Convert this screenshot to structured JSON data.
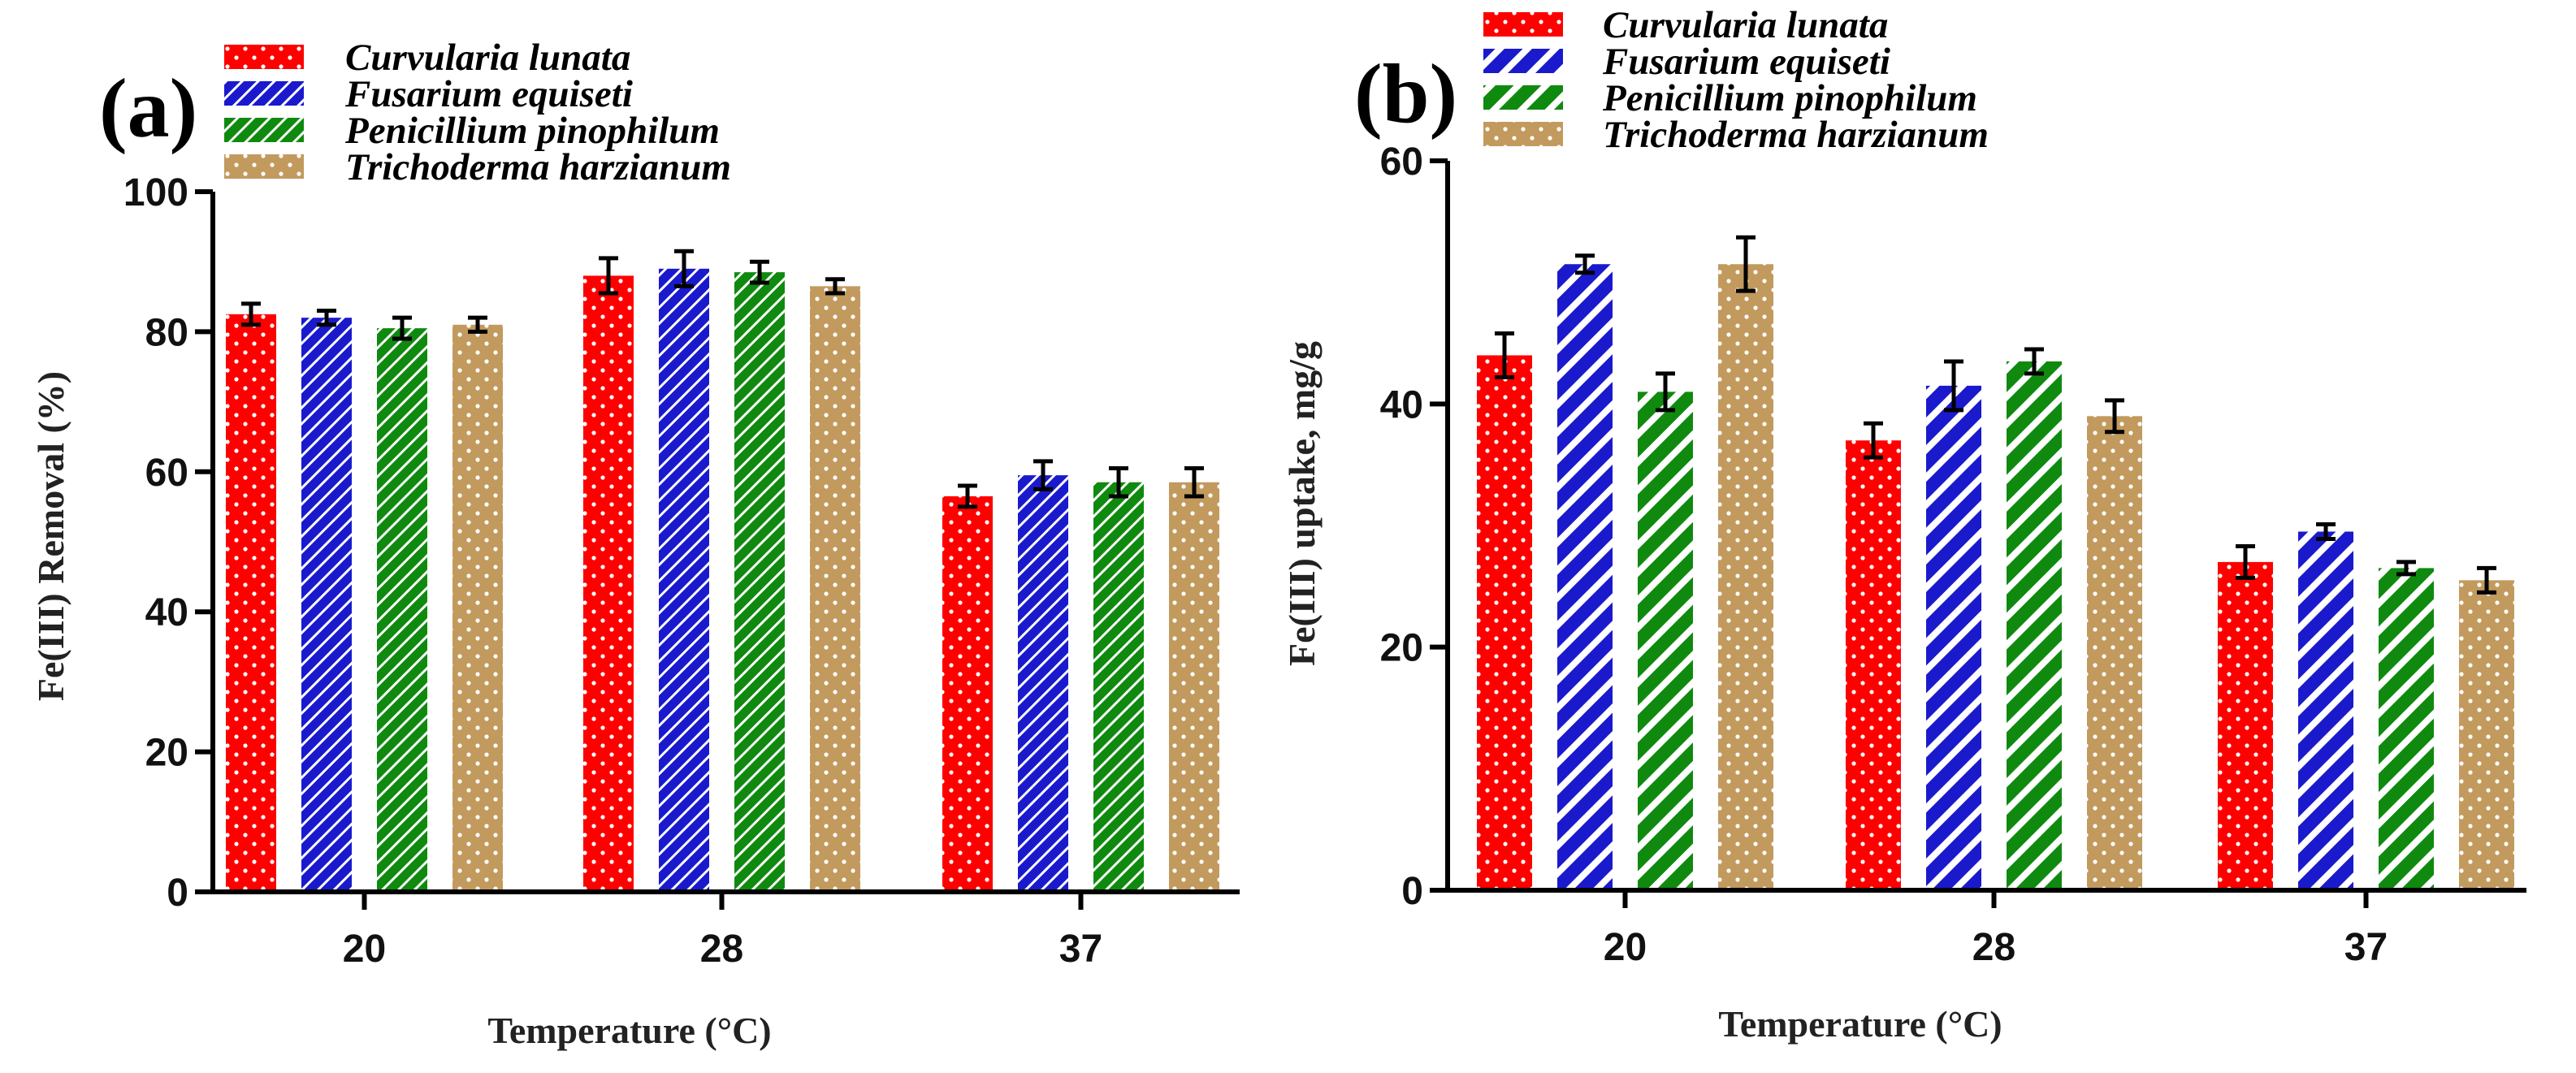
{
  "colors": {
    "Curvularia lunata": "#ff0000",
    "Fusarium equiseti": "#1a1acc",
    "Penicillium pinophilum": "#0f8a0f",
    "Trichoderma harzianum": "#c29a5e"
  },
  "chart_data": [
    {
      "type": "bar",
      "panel_label": "(a)",
      "title": "",
      "xlabel": "Temperature (°C)",
      "ylabel": "Fe(III) Removal (%)",
      "ylim": [
        0,
        100
      ],
      "yticks": [
        0,
        20,
        40,
        60,
        80,
        100
      ],
      "categories": [
        "20",
        "28",
        "37"
      ],
      "legend_position": "top-center",
      "series": [
        {
          "name": "Curvularia lunata",
          "pattern": "dots",
          "values": [
            82.5,
            88,
            56.5
          ],
          "errors": [
            1.5,
            2.5,
            1.5
          ]
        },
        {
          "name": "Fusarium equiseti",
          "pattern": "hatch",
          "values": [
            82,
            89,
            59.5
          ],
          "errors": [
            1.0,
            2.5,
            2.0
          ]
        },
        {
          "name": "Penicillium pinophilum",
          "pattern": "hatch",
          "values": [
            80.5,
            88.5,
            58.5
          ],
          "errors": [
            1.5,
            1.5,
            2.0
          ]
        },
        {
          "name": "Trichoderma harzianum",
          "pattern": "dots",
          "values": [
            81,
            86.5,
            58.5
          ],
          "errors": [
            1.0,
            1.0,
            2.0
          ]
        }
      ]
    },
    {
      "type": "bar",
      "panel_label": "(b)",
      "title": "",
      "xlabel": "Temperature (°C)",
      "ylabel": "Fe(III) uptake, mg/g",
      "ylim": [
        0,
        60
      ],
      "yticks": [
        0,
        20,
        40,
        60
      ],
      "categories": [
        "20",
        "28",
        "37"
      ],
      "legend_position": "top-center",
      "series": [
        {
          "name": "Curvularia lunata",
          "pattern": "dots",
          "values": [
            44,
            37,
            27
          ],
          "errors": [
            1.8,
            1.4,
            1.3
          ]
        },
        {
          "name": "Fusarium equiseti",
          "pattern": "hatch-wide",
          "values": [
            51.5,
            41.5,
            29.5
          ],
          "errors": [
            0.7,
            2.0,
            0.6
          ]
        },
        {
          "name": "Penicillium pinophilum",
          "pattern": "hatch-wide",
          "values": [
            41,
            43.5,
            26.5
          ],
          "errors": [
            1.5,
            1.0,
            0.5
          ]
        },
        {
          "name": "Trichoderma harzianum",
          "pattern": "dots",
          "values": [
            51.5,
            39,
            25.5
          ],
          "errors": [
            2.2,
            1.3,
            1.0
          ]
        }
      ]
    }
  ]
}
